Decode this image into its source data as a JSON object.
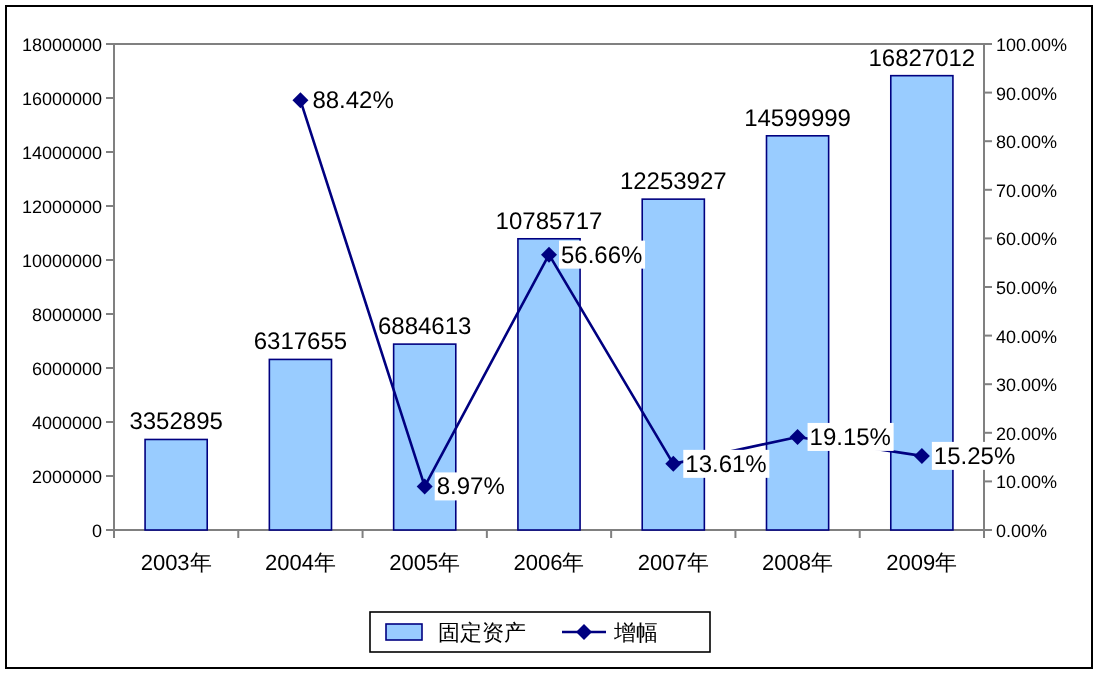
{
  "chart_data": {
    "type": "bar",
    "categories": [
      "2003年",
      "2004年",
      "2005年",
      "2006年",
      "2007年",
      "2008年",
      "2009年"
    ],
    "series": [
      {
        "name": "固定资产",
        "color": "#99ccff",
        "values": [
          3352895,
          6317655,
          6884613,
          10785717,
          12253927,
          14599999,
          16827012
        ],
        "value_labels": [
          "3352895",
          "6317655",
          "6884613",
          "10785717",
          "12253927",
          "14599999",
          "16827012"
        ]
      },
      {
        "name": "增幅",
        "type": "line",
        "axis": "y2",
        "color": "#000080",
        "marker": "diamond",
        "line_style": "solid",
        "values": [
          null,
          88.42,
          8.97,
          56.66,
          13.61,
          19.15,
          15.25
        ],
        "value_labels": [
          null,
          "88.42%",
          "8.97%",
          "56.66%",
          "13.61%",
          "19.15%",
          "15.25%"
        ]
      }
    ],
    "ylim": [
      0,
      18000000
    ],
    "yticks": [
      0,
      2000000,
      4000000,
      6000000,
      8000000,
      10000000,
      12000000,
      14000000,
      16000000,
      18000000
    ],
    "y2lim": [
      0,
      100
    ],
    "y2ticks": [
      {
        "value": 0,
        "label": "0.00%"
      },
      {
        "value": 10,
        "label": "10.00%"
      },
      {
        "value": 20,
        "label": "20.00%"
      },
      {
        "value": 30,
        "label": "30.00%"
      },
      {
        "value": 40,
        "label": "40.00%"
      },
      {
        "value": 50,
        "label": "50.00%"
      },
      {
        "value": 60,
        "label": "60.00%"
      },
      {
        "value": 70,
        "label": "70.00%"
      },
      {
        "value": 80,
        "label": "80.00%"
      },
      {
        "value": 90,
        "label": "90.00%"
      },
      {
        "value": 100,
        "label": "100.00%"
      }
    ],
    "legend": "bottom",
    "grid": false
  }
}
